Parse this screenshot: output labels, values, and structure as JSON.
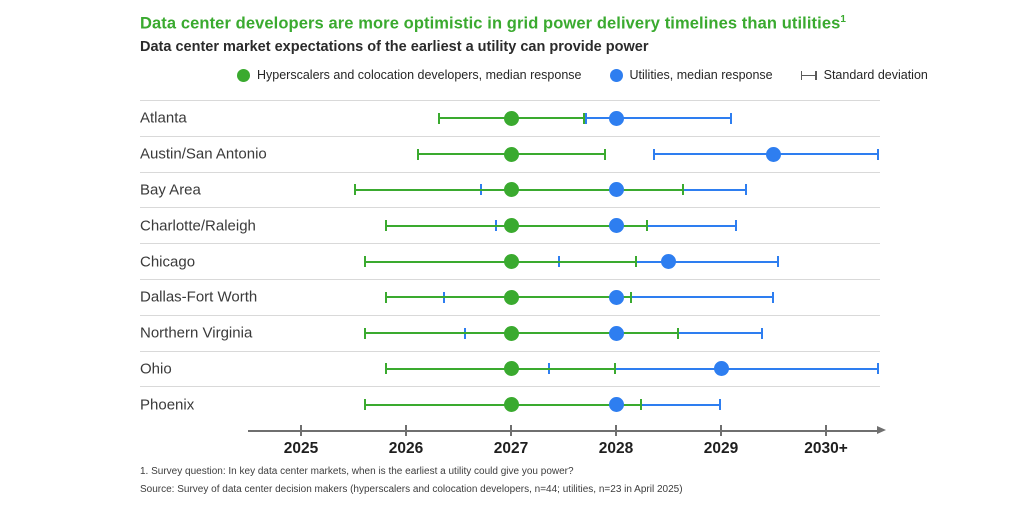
{
  "title": {
    "text": "Data center developers are more optimistic in grid power delivery timelines than utilities",
    "superscript": "1",
    "color": "#3aaa2f"
  },
  "subtitle": "Data center market expectations of the earliest a utility can provide power",
  "legend": [
    {
      "label": "Hyperscalers and colocation developers, median response",
      "marker": "dot",
      "color": "#3aaa2f"
    },
    {
      "label": "Utilities, median response",
      "marker": "dot",
      "color": "#2e7ef0"
    },
    {
      "label": "Standard deviation",
      "marker": "error-bar",
      "color": "#5a5a5a"
    }
  ],
  "chart_data": {
    "type": "scatter",
    "description": "Horizontal dot plot: median expected year of earliest utility power delivery per market, with standard-deviation error bars",
    "categories": [
      "Atlanta",
      "Austin/San Antonio",
      "Bay Area",
      "Charlotte/Raleigh",
      "Chicago",
      "Dallas-Fort Worth",
      "Northern Virginia",
      "Ohio",
      "Phoenix"
    ],
    "x_axis": {
      "ticks": [
        "2025",
        "2026",
        "2027",
        "2028",
        "2029",
        "2030+"
      ],
      "tick_years": [
        2025,
        2026,
        2027,
        2028,
        2029,
        2030
      ],
      "min": 2024.5,
      "max": 2030.6
    },
    "series": [
      {
        "name": "Hyperscalers and colocation developers, median response",
        "color": "#3aaa2f",
        "median": [
          2027,
          2027,
          2027,
          2027,
          2027,
          2027,
          2027,
          2027,
          2027
        ],
        "low": [
          2026.3,
          2026.1,
          2025.5,
          2025.8,
          2025.6,
          2025.8,
          2025.6,
          2025.8,
          2025.6
        ],
        "high": [
          2027.7,
          2027.9,
          2028.65,
          2028.3,
          2028.2,
          2028.15,
          2028.6,
          2028.0,
          2028.25
        ]
      },
      {
        "name": "Utilities, median response",
        "color": "#2e7ef0",
        "median": [
          2028,
          2029.5,
          2028,
          2028,
          2028.5,
          2028,
          2028,
          2029,
          2028
        ],
        "low": [
          2027.7,
          2028.35,
          2026.7,
          2026.85,
          2027.45,
          2026.35,
          2026.55,
          2027.35,
          2027.0
        ],
        "high": [
          2029.1,
          2030.5,
          2029.25,
          2029.15,
          2029.55,
          2029.5,
          2029.4,
          2030.5,
          2029.0
        ]
      }
    ]
  },
  "footnotes": [
    "1. Survey question: In key data center markets, when is the earliest a utility could give you power?",
    "Source: Survey of data center decision makers (hyperscalers and colocation developers, n=44; utilities, n=23 in April 2025)"
  ]
}
